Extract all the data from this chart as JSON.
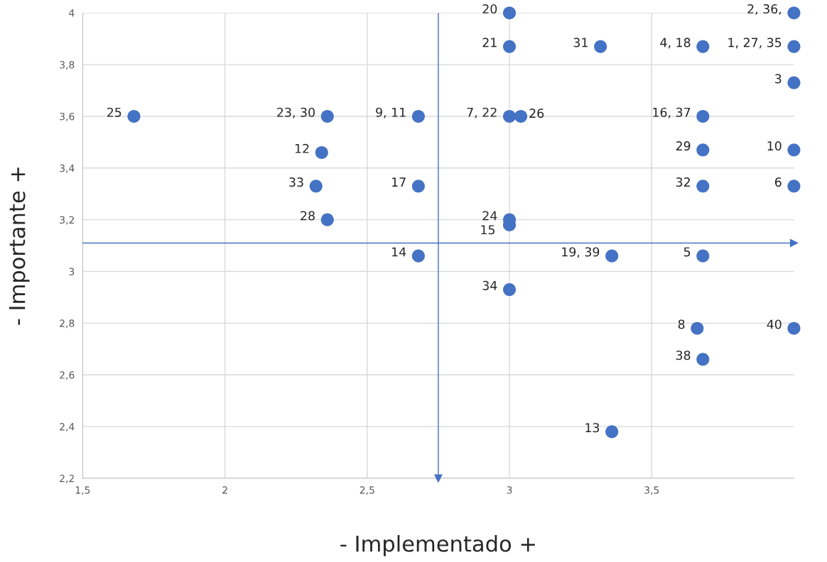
{
  "chart_data": {
    "type": "scatter",
    "xlabel": "- Implementado +",
    "ylabel": "- Importante +",
    "xlim": [
      1.5,
      4.0
    ],
    "ylim": [
      2.2,
      4.0
    ],
    "xticks": [
      {
        "value": 1.5,
        "label": "1,5"
      },
      2,
      {
        "value": 2.5,
        "label": "2,5"
      },
      3,
      {
        "value": 3.5,
        "label": "3,5"
      }
    ],
    "yticks": [
      {
        "value": 2.2,
        "label": "2,2"
      },
      {
        "value": 2.4,
        "label": "2,4"
      },
      {
        "value": 2.6,
        "label": "2,6"
      },
      {
        "value": 2.8,
        "label": "2,8"
      },
      3,
      {
        "value": 3.2,
        "label": "3,2"
      },
      {
        "value": 3.4,
        "label": "3,4"
      },
      {
        "value": 3.6,
        "label": "3,6"
      },
      {
        "value": 3.8,
        "label": "3,8"
      },
      4
    ],
    "grid": true,
    "marker": "circle",
    "ref_lines": [
      {
        "axis": "y",
        "value": 3.11,
        "color": "#4472c4"
      },
      {
        "axis": "x",
        "value": 2.75,
        "color": "#4472c4"
      }
    ],
    "series": [
      {
        "color": "#4472c4",
        "x": [
          3.0,
          3.0,
          3.32,
          3.68,
          4.0,
          4.0,
          4.0,
          1.68,
          2.36,
          2.68,
          3.0,
          3.04,
          3.68,
          2.34,
          3.68,
          4.0,
          2.32,
          2.68,
          3.68,
          4.0,
          2.36,
          3.0,
          3.0,
          2.68,
          3.36,
          3.68,
          3.0,
          3.66,
          4.0,
          3.68,
          3.36
        ],
        "values": [
          4.0,
          3.87,
          3.87,
          3.87,
          3.87,
          4.0,
          3.73,
          3.6,
          3.6,
          3.6,
          3.6,
          3.6,
          3.6,
          3.46,
          3.47,
          3.47,
          3.33,
          3.33,
          3.33,
          3.33,
          3.2,
          3.2,
          3.18,
          3.06,
          3.06,
          3.06,
          2.93,
          2.78,
          2.78,
          2.66,
          2.38
        ]
      }
    ],
    "annotations": [
      {
        "text": "20",
        "x": 3.0,
        "y": 4.0
      },
      {
        "text": "21",
        "x": 3.0,
        "y": 3.87
      },
      {
        "text": "31",
        "x": 3.32,
        "y": 3.87
      },
      {
        "text": "4, 18",
        "x": 3.68,
        "y": 3.87
      },
      {
        "text": "1, 27, 35",
        "x": 4.0,
        "y": 3.87
      },
      {
        "text": "2, 36,",
        "x": 4.0,
        "y": 4.0
      },
      {
        "text": "3",
        "x": 4.0,
        "y": 3.73
      },
      {
        "text": "25",
        "x": 1.68,
        "y": 3.6
      },
      {
        "text": "23, 30",
        "x": 2.36,
        "y": 3.6
      },
      {
        "text": "9, 11",
        "x": 2.68,
        "y": 3.6
      },
      {
        "text": "7, 22",
        "x": 3.0,
        "y": 3.6
      },
      {
        "text": "26",
        "x": 3.04,
        "y": 3.6
      },
      {
        "text": "16, 37",
        "x": 3.68,
        "y": 3.6
      },
      {
        "text": "12",
        "x": 2.34,
        "y": 3.46
      },
      {
        "text": "29",
        "x": 3.68,
        "y": 3.47
      },
      {
        "text": "10",
        "x": 4.0,
        "y": 3.47
      },
      {
        "text": "33",
        "x": 2.32,
        "y": 3.33
      },
      {
        "text": "17",
        "x": 2.68,
        "y": 3.33
      },
      {
        "text": "32",
        "x": 3.68,
        "y": 3.33
      },
      {
        "text": "6",
        "x": 4.0,
        "y": 3.33
      },
      {
        "text": "28",
        "x": 2.36,
        "y": 3.2
      },
      {
        "text": "24",
        "x": 3.0,
        "y": 3.2
      },
      {
        "text": "15",
        "x": 3.0,
        "y": 3.18
      },
      {
        "text": "14",
        "x": 2.68,
        "y": 3.06
      },
      {
        "text": "19, 39",
        "x": 3.36,
        "y": 3.06
      },
      {
        "text": "5",
        "x": 3.68,
        "y": 3.06
      },
      {
        "text": "34",
        "x": 3.0,
        "y": 2.93
      },
      {
        "text": "8",
        "x": 3.66,
        "y": 2.78
      },
      {
        "text": "40",
        "x": 4.0,
        "y": 2.78
      },
      {
        "text": "38",
        "x": 3.68,
        "y": 2.66
      },
      {
        "text": "13",
        "x": 3.36,
        "y": 2.38
      }
    ]
  }
}
